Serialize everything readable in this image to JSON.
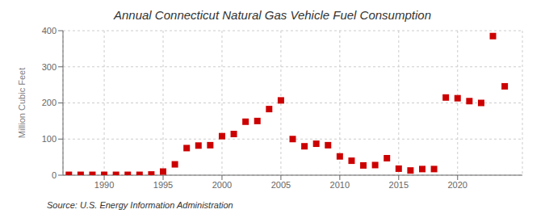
{
  "chart_data": {
    "type": "scatter",
    "title": "Annual Connecticut Natural Gas Vehicle Fuel Consumption",
    "ylabel": "Million Cubic Feet",
    "source": "Source: U.S. Energy Information Administration",
    "x": [
      1987,
      1988,
      1989,
      1990,
      1991,
      1992,
      1993,
      1994,
      1995,
      1996,
      1997,
      1998,
      1999,
      2000,
      2001,
      2002,
      2003,
      2004,
      2005,
      2006,
      2007,
      2008,
      2009,
      2010,
      2011,
      2012,
      2013,
      2014,
      2015,
      2016,
      2017,
      2018,
      2019,
      2020,
      2021,
      2022,
      2023,
      2024
    ],
    "values": [
      1,
      1,
      1,
      1,
      1,
      1,
      1,
      2,
      10,
      30,
      75,
      82,
      83,
      108,
      114,
      148,
      150,
      183,
      207,
      100,
      80,
      87,
      83,
      52,
      40,
      27,
      28,
      47,
      18,
      13,
      17,
      17,
      215,
      213,
      205,
      200,
      385,
      246
    ],
    "xlim": [
      1986.5,
      2025.5
    ],
    "xticks": [
      1990,
      1995,
      2000,
      2005,
      2010,
      2015,
      2020
    ],
    "ylim": [
      0,
      400
    ],
    "yticks": [
      0,
      100,
      200,
      300,
      400
    ],
    "color": "#cc0000",
    "marker": "square",
    "grid": true
  }
}
